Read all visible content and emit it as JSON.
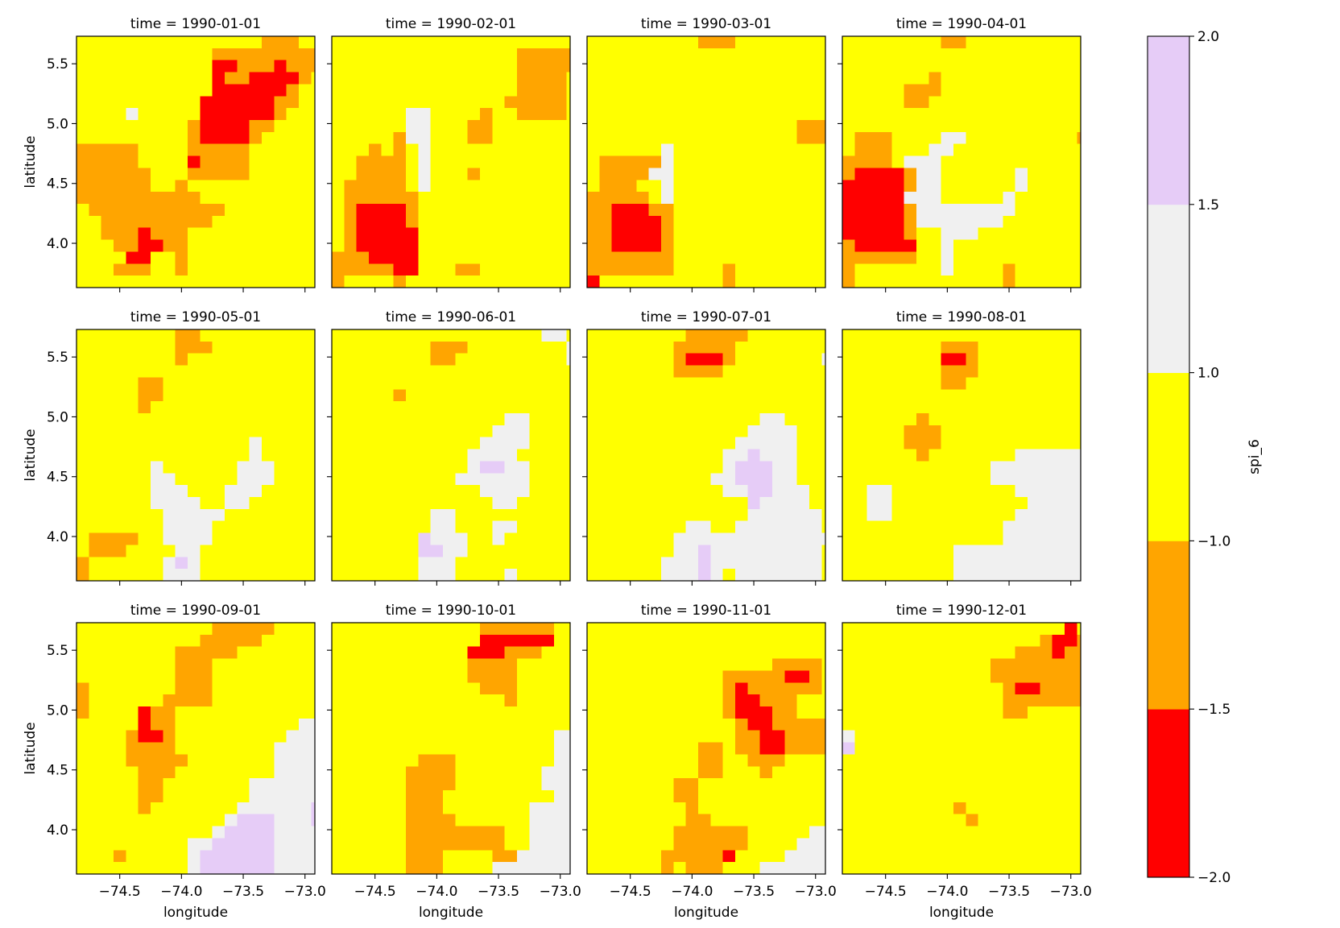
{
  "chart_data": {
    "type": "heatmap",
    "variable": "spi_6",
    "xlabel": "longitude",
    "ylabel": "latitude",
    "xlim": [
      -74.85,
      -72.92
    ],
    "ylim": [
      3.63,
      5.73
    ],
    "xticks": [
      -74.5,
      -74.0,
      -73.5,
      -73.0
    ],
    "xtick_labels": [
      "−74.5",
      "−74.0",
      "−73.5",
      "−73.0"
    ],
    "yticks": [
      4.0,
      4.5,
      5.0,
      5.5
    ],
    "ytick_labels": [
      "4.0",
      "4.5",
      "5.0",
      "5.5"
    ],
    "grid_shape": [
      21,
      20
    ],
    "cell_degrees": 0.1,
    "legend": "right",
    "grid": false,
    "colorbar": {
      "label": "spi_6",
      "levels": [
        -2.0,
        -1.5,
        -1.0,
        1.0,
        1.5,
        2.0
      ],
      "level_labels": [
        "−2.0",
        "−1.5",
        "−1.0",
        "1.0",
        "1.5",
        "2.0"
      ],
      "colors": [
        "#ff0000",
        "#ffa500",
        "#ffff00",
        "#f0f0f0",
        "#e6ccf7"
      ]
    },
    "class_key": {
      "R": "-2.0 to -1.5",
      "O": "-1.5 to -1.0",
      "Y": "-1.0 to 1.0",
      "G": "1.0 to 1.5",
      "P": "1.5 to 2.0"
    },
    "panels": [
      {
        "title": "time = 1990-01-01",
        "grid": [
          "YYYYYYYYYYYYYYYOOOYY",
          "YYYYYYYYYYYOOOOOOOOO",
          "YYYYYYYYYYYRROOOROOO",
          "YYYYYYYYYYYROORRRROY",
          "YYYYYYYYYYYRRRRRROYY",
          "YYYYYYYYYYRRRRRROOYY",
          "YYYYGYYYYYRRRRRROYYY",
          "YYYYYYYYYORRRROOYYYY",
          "YYYYYYYYYORRRROYYYYY",
          "OOOOOYYYYOOOOOYYYYYY",
          "OOOOOYYYYROOOOYYYYYY",
          "OOOOOOYYYOOOOOYYYYYY",
          "OOOOOOYYOYYYYYYYYYYY",
          "OOOOOOOOOOYYYYYYYYYY",
          "YOOOOOOOOOOOYYYYYYYY",
          "YYOOOOOOOOOYYYYYYYYY",
          "YYOOOROOOYYYYYYYYYYY",
          "YYYOORROOYYYYYYYYYYY",
          "YYYYRRYYOYYYYYYYYYYY",
          "YYYOOOYYOYYYYYYYYYYY",
          "YYYYYYYYYYYYYYYYYYYY"
        ]
      },
      {
        "title": "time = 1990-02-01",
        "grid": [
          "YYYYYYYYYYYYYYYYYYYY",
          "YYYYYYYYYYYYYYYOOOOO",
          "YYYYYYYYYYYYYYYOOOOO",
          "YYYYYYYYYYYYYYYOOOOY",
          "YYYYYYYYYYYYYYYOOOOY",
          "YYYYYYYYYYYYYYOOOOOY",
          "YYYYYYGGYYYYOYYOOOOY",
          "YYYYYYGGYYYOOYYYYYYY",
          "YYYYYOGGYYYOOYYYYYYY",
          "YYYOYOYGYYYYYYYYYYYY",
          "YYOOOOYGYYYYYYYYYYYY",
          "YYOOOOYGYYYOYYYYYYYY",
          "YOOOOOYGYYYYYYYYYYYY",
          "YOOOOOOYYYYYYYYYYYYY",
          "YORRRROYYYYYYYYYYYYY",
          "YORRRROYYYYYYYYYYYYY",
          "YORRRRRYYYYYYYYYYYYY",
          "YORRRRRYYYYYYYYYYYYY",
          "OOORRRRYYYYYYYYYYYYY",
          "OOOOORRYYYOOYYYYYYYY",
          "OYYYYOYYYYYYYYYYYYYY"
        ]
      },
      {
        "title": "time = 1990-03-01",
        "grid": [
          "YYYYYYYYYOOOYYYYYYYY",
          "YYYYYYYYYYYYYYYYYYYY",
          "YYYYYYYYYYYYYYYYYYYY",
          "YYYYYYYYYYYYYYYYYYYY",
          "YYYYYYYYYYYYYYYYYYYY",
          "YYYYYYYYYYYYYYYYYYYY",
          "YYYYYYYYYYYYYYYYYYYY",
          "YYYYYYYYYYYYYYYYYOOO",
          "YYYYYYYYYYYYYYYYYOOO",
          "YYYYYYGYYYYYYYYYYYYY",
          "YOOOOOGYYYYYYYYYYYYY",
          "YOOOOGGYYYYYYYYYYYYY",
          "YOOOYYGYYYYYYYYYYYYY",
          "OOOOOYGYYYYYYYYYYYYY",
          "OORRROOYYYYYYYYYYYYY",
          "OORRRROYYYYYYYYYYYYY",
          "OORRRROYYYYYYYYYYYYY",
          "OORRRROYYYYYYYYYYYYY",
          "OOOOOOOYYYYYYYYYYYYY",
          "OOOOOOOYYYYOYYYYYYYY",
          "RYYYYYYYYYYOYYYYYYYY"
        ]
      },
      {
        "title": "time = 1990-04-01",
        "grid": [
          "YYYYYYYYOOYYYYYYYYYY",
          "YYYYYYYYYYYYYYYYYYYY",
          "YYYYYYYYYYYYYYYYYYYY",
          "YYYYYYYOYYYYYYYYYYYY",
          "YYYYYOOOYYYYYYYYYYYY",
          "YYYYYOOYYYYYYYYYYYYY",
          "YYYYYYYYYYYYYYYYYYYY",
          "YYYYYYYYYYYYYYYYYYYY",
          "YOOOYYYYGGYYYYYYYYYO",
          "YOOOYYYGGYYYYYYYYYYY",
          "OOOOYGGGYYYYYYYYYYYY",
          "ORRRROGGYYYYYYGYYYYY",
          "RRRRROGGYYYYYYGYYYYY",
          "RRRRRGGGYYYYYGYYYYYY",
          "RRRRROGGGGGGGGYYYYYY",
          "RRRRROGGGGGGGYYYYYYY",
          "RRRRROYYGGGYYYYYYYYY",
          "ORRRRRYYGYYYYYYYYYYY",
          "OOOOOOYYGYYYYYYYYYYY",
          "OYYYYYYYGYYYYOYYYYYY",
          "OYYYYYYYYYYYYOYYYYYY"
        ]
      },
      {
        "title": "time = 1990-05-01",
        "grid": [
          "YYYYYYYYOOYYYYYYYYYY",
          "YYYYYYYYOOOYYYYYYYYY",
          "YYYYYYYYOYYYYYYYYYYY",
          "YYYYYYYYYYYYYYYYYYYY",
          "YYYYYOOYYYYYYYYYYYYY",
          "YYYYYOOYYYYYYYYYYYYY",
          "YYYYYOYYYYYYYYYYYYYY",
          "YYYYYYYYYYYYYYYYYYYY",
          "YYYYYYYYYYYYYYYYYYYY",
          "YYYYYYYYYYYYYYGYYYYY",
          "YYYYYYYYYYYYYYGYYYYY",
          "YYYYYYGYYYYYYGGGYYYY",
          "YYYYYYGGYYYYYGGGYYYY",
          "YYYYYYGGGYYYGGGYYYYY",
          "YYYYYYGGGGYYGGYYYYYY",
          "YYYYYYYGGGGGYYYYYYYY",
          "YYYYYYYGGGGYYYYYYYYY",
          "YOOOOYYGGGGYYYYYYYYY",
          "YOOOYYYYGGYYYYYYYYYY",
          "OYYYYYYGPGYYYYYYYYYY",
          "OYYYYYYGGGYYYYYYYYYY"
        ]
      },
      {
        "title": "time = 1990-06-01",
        "grid": [
          "YYYYYYYYYYYYYYYYYGGY",
          "YYYYYYYYOOOYYYYYYYYG",
          "YYYYYYYYOOYYYYYYYYYG",
          "YYYYYYYYYYYYYYYYYYYY",
          "YYYYYYYYYYYYYYYYYYYY",
          "YYYYYOYYYYYYYYYYYYYY",
          "YYYYYYYYYYYYYYYYYYYY",
          "YYYYYYYYYYYYYYGGYYYY",
          "YYYYYYYYYYYYYGGGYYYY",
          "YYYYYYYYYYYYGGGGYYYY",
          "YYYYYYYYYYYGGGGYYYYY",
          "YYYYYYYYYYYGPPGGYYYY",
          "YYYYYYYYYYGGGGGGYYYY",
          "YYYYYYYYYYYYGGGGYYYY",
          "YYYYYYYYYYYYYGGYYYYY",
          "YYYYYYYYGGYYYYYYYYYY",
          "YYYYYYYYGGYYYGGYYYYY",
          "YYYYYYYPGGGYYGYYYYYY",
          "YYYYYYYPPGGYYYYYYYYY",
          "YYYYYYYGGGYYYYYYYYYY",
          "YYYYYYYGGGYYYYGYYYYY"
        ]
      },
      {
        "title": "time = 1990-07-01",
        "grid": [
          "YYYYYYYYOOOOOYYYYYYY",
          "YYYYYYYOOOOOYYYYYYYY",
          "YYYYYYYORRROYYYYYYYG",
          "YYYYYYYOOOOYYYYYYYYY",
          "YYYYYYYYYYYYYYYYYYYY",
          "YYYYYYYYYYYYYYYYYYYY",
          "YYYYYYYYYYYYYYYYYYYY",
          "YYYYYYYYYYYYYYGGYYYY",
          "YYYYYYYYYYYYYGGGGYYY",
          "YYYYYYYYYYYYGGGGGYYY",
          "YYYYYYYYYYYGGPGGGYYY",
          "YYYYYYYYYYYGPPPGGYYY",
          "YYYYYYYYYYGGPPPGGYYY",
          "YYYYYYYYYYYGGPPGGGYY",
          "YYYYYYYYYYYYYPGGGGYY",
          "YYYYYYYYYYYYYGGGGGGY",
          "YYYYYYYYGGYYGGGGGGGY",
          "YYYYYYYGGGGGGGGGGGGG",
          "YYYYYYYGGPGGGGGGGGGY",
          "YYYYYYGGGPGGGGGGGGGY",
          "YYYYYYGGGPGYGGGGGGGY"
        ]
      },
      {
        "title": "time = 1990-08-01",
        "grid": [
          "YYYYYYYYYYYYYYYYYYYY",
          "YYYYYYYYOOOYYYYYYYYY",
          "YYYYYYYYRROYYYYYYYYY",
          "YYYYYYYYOOOYYYYYYYYY",
          "YYYYYYYYOOYYYYYYYYYY",
          "YYYYYYYYYYYYYYYYYYYY",
          "YYYYYYYYYYYYYYYYYYYY",
          "YYYYYYOYYYYYYYYYYYYY",
          "YYYYYOOOYYYYYYYYYYYY",
          "YYYYYOOOYYYYYYYYYYYY",
          "YYYYYYOYYYYYYYGGGGGG",
          "YYYYYYYYYYYYGGGGGGGG",
          "YYYYYYYYYYYYGGGGGGGG",
          "YYGGYYYYYYYYYYGGGGGG",
          "YYGGYYYYYYYYYYYGGGGG",
          "YYGGYYYYYYYYYYGGGGGG",
          "YYYYYYYYYYYYYGGGGGGG",
          "YYYYYYYYYYYYYGGGGGGG",
          "YYYYYYYYYGGGGGGGGGGG",
          "YYYYYYYYYGGGGGGGGGGG",
          "YYYYYYYYYGGGGGGGGGGG"
        ]
      },
      {
        "title": "time = 1990-09-01",
        "grid": [
          "YYYYYYYYYYYOOOOOYYYY",
          "YYYYYYYYYYOOOOOYYYYY",
          "YYYYYYYYOOOOOYYYYYYY",
          "YYYYYYYYOOOYYYYYYYYY",
          "YYYYYYYYOOOYYYYYYYYY",
          "OYYYYYYYOOOYYYYYYYYY",
          "OYYYYYYOOOOYYYYYYYYY",
          "OYYYYROOYYYYYYYYYYYY",
          "YYYYYROOYYYYYYYYYYGG",
          "YYYYORROYYYYYYYYYGGG",
          "YYYYOOOOYYYYYYYYGGGG",
          "YYYYOOOOOYYYYYYYGGGG",
          "YYYYYOOOYYYYYYYYGGGG",
          "YYYYYOOYYYYYYYGGGGGG",
          "YYYYYOOYYYYYYYGGGGGG",
          "YYYYYOYYYYYYYGGGGGGP",
          "YYYYYYYYYYYYGPPPGGGP",
          "YYYYYYYYYYYGPPPPGGGG",
          "YYYYYYYYYGGPPPPPGGGG",
          "YYYOYYYYYGPPPPPPGGGG",
          "YYYYYYYYYGPPPPPPGGGG"
        ]
      },
      {
        "title": "time = 1990-10-01",
        "grid": [
          "YYYYYYYYYYYYOOOOOOYY",
          "YYYYYYYYYYYYRRRRRRYY",
          "YYYYYYYYYYYRRROOOYYY",
          "YYYYYYYYYYYOOOOYYYYY",
          "YYYYYYYYYYYOOOOYYYYY",
          "YYYYYYYYYYYYOOOYYYYY",
          "YYYYYYYYYYYYYYOYYYYY",
          "YYYYYYYYYYYYYYYYYYYY",
          "YYYYYYYYYYYYYYYYYYYY",
          "YYYYYYYYYYYYYYYYYYGG",
          "YYYYYYYYYYYYYYYYYYGG",
          "YYYYYYYOOOYYYYYYYYGG",
          "YYYYYYOOOOYYYYYYYGGG",
          "YYYYYYOOOOYYYYYYYGGG",
          "YYYYYYOOOYYYYYYYYYGG",
          "YYYYYYOOOYYYYYYYGGGG",
          "YYYYYYOOOOYYYYYYGGGG",
          "YYYYYYOOOOOOOOYYGGGG",
          "YYYYYYOOOOOOOOYYGGGG",
          "YYYYYYOOOYYYYOOGGGGG",
          "YYYYYYOOOYYYYGGGGGGG"
        ]
      },
      {
        "title": "time = 1990-11-01",
        "grid": [
          "YYYYYYYYYYYYYYYYYYYY",
          "YYYYYYYYYYYYYYYYYYYY",
          "YYYYYYYYYYYYYYYYYYYY",
          "YYYYYYYYYYYYYYYOOOOY",
          "YYYYYYYYYYYOOOOORROY",
          "YYYYYYYYYYYOROOOOOOY",
          "YYYYYYYYYYYORROOOYYY",
          "YYYYYYYYYYYORRROOYYY",
          "YYYYYYYYYYYYORROOOOO",
          "YYYYYYYYYYYYOORROOOO",
          "YYYYYYYYYOOYOORROOOO",
          "YYYYYYYYYOOYYOOOYYYY",
          "YYYYYYYYYOOYYYOYYYYY",
          "YYYYYYYOOYYYYYYYYYYY",
          "YYYYYYYOOYYYYYYYYYYY",
          "YYYYYYYYOYYYYYYYYYYY",
          "YYYYYYYYOOYYYYYYYYYY",
          "YYYYYYYOOOOOOYYYYYGG",
          "YYYYYYYOOOOOOYYYYGGG",
          "YYYYYYOOOOORYYYYGGGG",
          "YYYYYYOYOOOYYYGGGGGG"
        ]
      },
      {
        "title": "time = 1990-12-01",
        "grid": [
          "YYYYYYYYYYYYYYYYYYRY",
          "YYYYYYYYYYYYYYYYORRO",
          "YYYYYYYYYYYYYYOOOROO",
          "YYYYYYYYYYYYOOOOOOOO",
          "YYYYYYYYYYYYOOOOOOOO",
          "YYYYYYYYYYYYYORROOOO",
          "YYYYYYYYYYYYYOOOOOOO",
          "YYYYYYYYYYYYYOOYYYYY",
          "YYYYYYYYYYYYYYYYYYYY",
          "GYYYYYYYYYYYYYYYYYYY",
          "PYYYYYYYYYYYYYYYYYYY",
          "YYYYYYYYYYYYYYYYYYYY",
          "YYYYYYYYYYYYYYYYYYYY",
          "YYYYYYYYYYYYYYYYYYYY",
          "YYYYYYYYYYYYYYYYYYYY",
          "YYYYYYYYYOYYYYYYYYYY",
          "YYYYYYYYYYOYYYYYYYYY",
          "YYYYYYYYYYYYYYYYYYYY",
          "YYYYYYYYYYYYYYYYYYYY",
          "YYYYYYYYYYYYYYYYYYYY",
          "YYYYYYYYYYYYYYYYYYYY"
        ]
      }
    ]
  }
}
